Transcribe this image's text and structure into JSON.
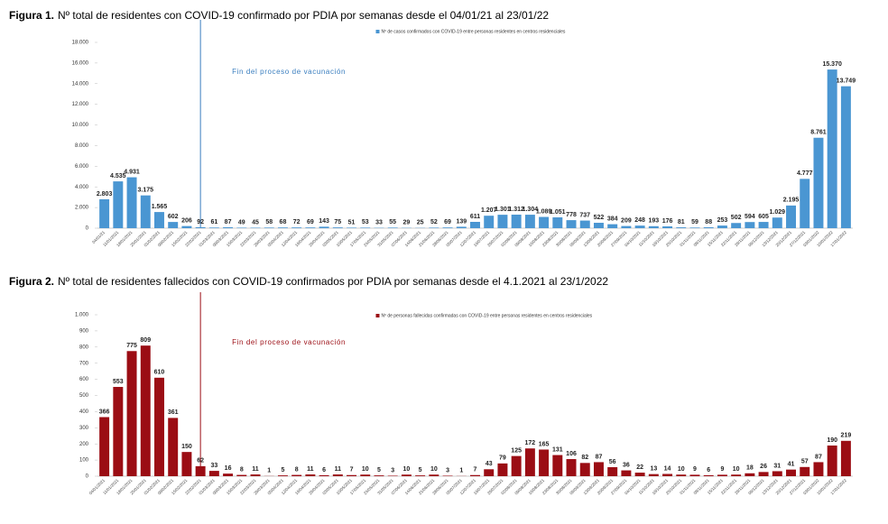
{
  "chart_data": [
    {
      "type": "bar",
      "figure_label": "Figura 1.",
      "title": "Nº total de residentes con COVID-19 confirmado por PDIA por semanas desde el 04/01/21 al 23/01/22",
      "annotation": "Fin del proceso de vacunación",
      "categories": [
        "04/01/21",
        "11/01/2021",
        "18/01/2021",
        "25/01/2021",
        "01/02/2021",
        "08/02/2021",
        "15/02/2021",
        "22/02/2021",
        "01/03/2021",
        "08/03/2021",
        "15/03/2021",
        "22/03/2021",
        "29/03/2021",
        "05/04/2021",
        "12/04/2021",
        "19/04/2021",
        "26/04/2021",
        "03/05/2021",
        "10/05/2021",
        "17/05/2021",
        "24/05/2021",
        "31/05/2021",
        "07/06/2021",
        "14/06/2021",
        "21/06/2021",
        "28/06/2021",
        "05/07/2021",
        "12/07/2021",
        "19/07/2021",
        "26/07/2021",
        "02/08/2021",
        "09/08/2021",
        "16/08/2021",
        "23/08/2021",
        "30/08/2021",
        "06/09/2021",
        "13/09/2021",
        "20/09/2021",
        "27/09/2021",
        "04/10/2021",
        "11/10/2021",
        "18/10/2021",
        "25/10/2021",
        "01/11/2021",
        "08/11/2021",
        "15/11/2021",
        "22/11/2021",
        "29/11/2021",
        "06/12/2021",
        "13/12/2021",
        "20/12/2021",
        "27/12/2021",
        "03/01/2022",
        "10/01/2022",
        "17/01/2022"
      ],
      "series": [
        {
          "name": "Nº de casos confirmados con COVID-19 entre personas residentes en centros residenciales",
          "color": "#4a96d2",
          "values": [
            2803,
            4535,
            4931,
            3175,
            1565,
            602,
            206,
            92,
            61,
            87,
            49,
            45,
            58,
            68,
            72,
            69,
            143,
            75,
            51,
            53,
            33,
            55,
            29,
            25,
            52,
            69,
            139,
            611,
            1207,
            1301,
            1312,
            1304,
            1089,
            1051,
            778,
            737,
            522,
            384,
            209,
            248,
            193,
            176,
            81,
            59,
            88,
            253,
            502,
            594,
            605,
            1029,
            2195,
            4777,
            8761,
            15370,
            13749
          ],
          "value_labels": [
            "2.803",
            "4.535",
            "4.931",
            "3.175",
            "1.565",
            "602",
            "206",
            "92",
            "61",
            "87",
            "49",
            "45",
            "58",
            "68",
            "72",
            "69",
            "143",
            "75",
            "51",
            "53",
            "33",
            "55",
            "29",
            "25",
            "52",
            "69",
            "139",
            "611",
            "1.207",
            "1.301",
            "1.312",
            "1.304",
            "1.089",
            "1.051",
            "778",
            "737",
            "522",
            "384",
            "209",
            "248",
            "193",
            "176",
            "81",
            "59",
            "88",
            "253",
            "502",
            "594",
            "605",
            "1.029",
            "2.195",
            "4.777",
            "8.761",
            "15.370",
            "13.749"
          ]
        }
      ],
      "ylim": [
        0,
        18000
      ],
      "yticks": [
        0,
        {
          "value": 2000,
          "label": "2.000"
        },
        {
          "value": 4000,
          "label": "4.000"
        },
        {
          "value": 6000,
          "label": "6.000"
        },
        {
          "value": 8000,
          "label": "8.000"
        },
        {
          "value": 10000,
          "label": "10.000"
        },
        {
          "value": 12000,
          "label": "12.000"
        },
        {
          "value": 14000,
          "label": "14.000"
        },
        {
          "value": 16000,
          "label": "16.000"
        },
        {
          "value": 18000,
          "label": "18.000"
        }
      ],
      "annotation_color": "#3a7ebf"
    },
    {
      "type": "bar",
      "figure_label": "Figura 2.",
      "title": "Nº total de residentes fallecidos con COVID-19 confirmados por PDIA por semanas desde el 4.1.2021 al 23/1/2022",
      "annotation": "Fin del proceso de vacunación",
      "categories": [
        "04/01/2021",
        "11/01/2021",
        "18/01/2021",
        "25/01/2021",
        "01/02/2021",
        "08/02/2021",
        "15/02/2021",
        "22/02/2021",
        "01/03/2021",
        "08/03/2021",
        "15/03/2021",
        "22/03/2021",
        "29/03/2021",
        "05/04/2021",
        "12/04/2021",
        "19/04/2021",
        "26/04/2021",
        "03/05/2021",
        "10/05/2021",
        "17/05/2021",
        "24/05/2021",
        "31/05/2021",
        "07/06/2021",
        "14/06/2021",
        "21/06/2021",
        "28/06/2021",
        "05/07/2021",
        "12/07/2021",
        "19/07/2021",
        "26/07/2021",
        "02/08/2021",
        "09/08/2021",
        "16/08/2021",
        "23/08/2021",
        "30/08/2021",
        "06/09/2021",
        "13/09/2021",
        "20/09/2021",
        "27/09/2021",
        "04/10/2021",
        "11/10/2021",
        "18/10/2021",
        "25/10/2021",
        "01/11/2021",
        "08/11/2021",
        "15/11/2021",
        "22/11/2021",
        "29/11/2021",
        "06/12/2021",
        "13/12/2021",
        "20/12/2021",
        "27/12/2021",
        "03/01/2022",
        "10/01/2022",
        "17/01/2022"
      ],
      "series": [
        {
          "name": "Nº de personas fallecidas confirmadas con COVID-19 entre personas residentes en centros residenciales",
          "color": "#9b0d14",
          "values": [
            366,
            553,
            775,
            809,
            610,
            361,
            150,
            62,
            33,
            16,
            8,
            11,
            1,
            5,
            8,
            11,
            6,
            11,
            7,
            10,
            5,
            3,
            10,
            5,
            10,
            3,
            1,
            7,
            43,
            79,
            125,
            172,
            165,
            131,
            106,
            82,
            87,
            56,
            36,
            22,
            13,
            14,
            10,
            9,
            6,
            9,
            10,
            18,
            26,
            31,
            41,
            57,
            87,
            190,
            219
          ]
        }
      ],
      "ylim": [
        0,
        1000
      ],
      "yticks": [
        0,
        100,
        200,
        300,
        400,
        500,
        600,
        700,
        800,
        900,
        {
          "value": 1000,
          "label": "1.000"
        }
      ],
      "annotation_color": "#9b0d14"
    }
  ]
}
